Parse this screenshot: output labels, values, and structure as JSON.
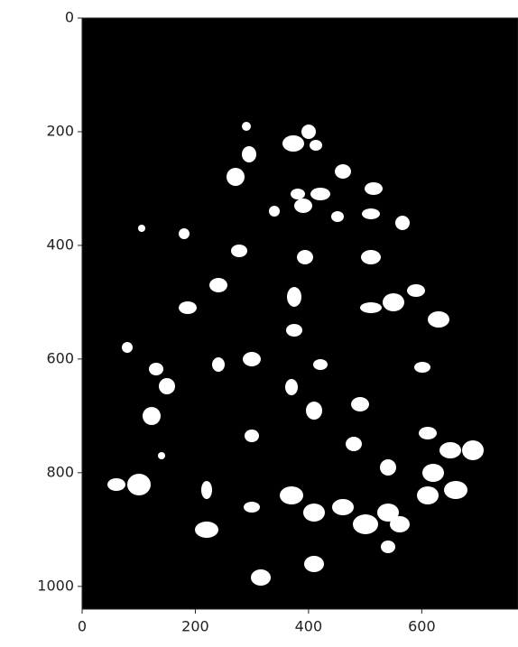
{
  "chart_data": {
    "type": "image",
    "xlim": [
      0,
      770
    ],
    "ylim": [
      1040,
      0
    ],
    "xticks": [
      0,
      200,
      400,
      600
    ],
    "yticks": [
      0,
      200,
      400,
      600,
      800,
      1000
    ]
  }
}
